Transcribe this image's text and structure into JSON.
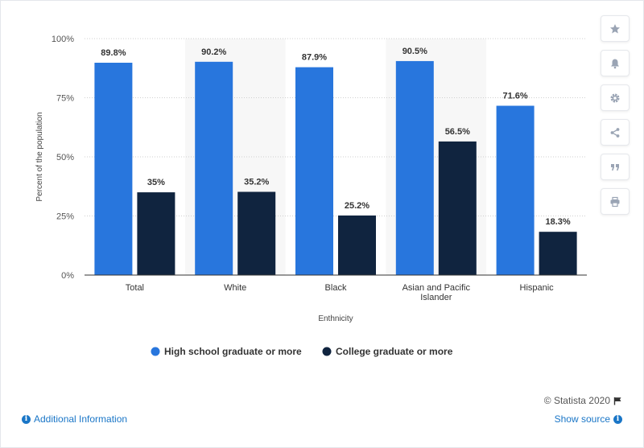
{
  "chart_data": {
    "type": "bar",
    "categories": [
      "Total",
      "White",
      "Black",
      "Asian and Pacific Islander",
      "Hispanic"
    ],
    "category_lines": [
      [
        "Total"
      ],
      [
        "White"
      ],
      [
        "Black"
      ],
      [
        "Asian and Pacific",
        "Islander"
      ],
      [
        "Hispanic"
      ]
    ],
    "series": [
      {
        "name": "High school graduate or more",
        "values": [
          89.8,
          90.2,
          87.9,
          90.5,
          71.6
        ],
        "labels": [
          "89.8%",
          "90.2%",
          "87.9%",
          "90.5%",
          "71.6%"
        ],
        "color": "#2876dd"
      },
      {
        "name": "College graduate or more",
        "values": [
          35,
          35.2,
          25.2,
          56.5,
          18.3
        ],
        "labels": [
          "35%",
          "35.2%",
          "25.2%",
          "56.5%",
          "18.3%"
        ],
        "color": "#10243f"
      }
    ],
    "xlabel": "Enthnicity",
    "ylabel": "Percent of the population",
    "ylim": [
      0,
      100
    ],
    "yticks": [
      0,
      25,
      50,
      75,
      100
    ],
    "ytick_labels": [
      "0%",
      "25%",
      "50%",
      "75%",
      "100%"
    ],
    "grid": true,
    "legend_position": "bottom-center"
  },
  "colors": {
    "band": "#f7f7f7",
    "grid": "#cfcfcf",
    "axis": "#333333",
    "link": "#1a76c7"
  },
  "toolbar": {
    "icons": [
      "star-icon",
      "bell-icon",
      "gear-icon",
      "share-icon",
      "quote-icon",
      "print-icon"
    ]
  },
  "footer": {
    "credits": "© Statista 2020",
    "additional_info": "Additional Information",
    "show_source": "Show source"
  }
}
